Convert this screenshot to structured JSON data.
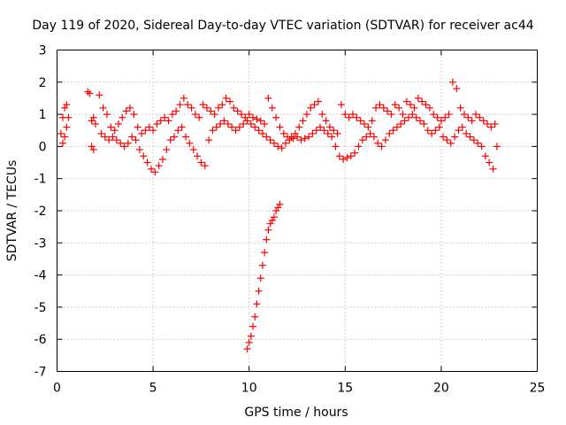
{
  "chart_data": {
    "type": "scatter",
    "title": "Day 119 of 2020, Sidereal Day-to-day VTEC variation (SDTVAR) for receiver ac44",
    "xlabel": "GPS time / hours",
    "ylabel": "SDTVAR / TECUs",
    "xlim": [
      0,
      25
    ],
    "ylim": [
      -7,
      3
    ],
    "xticks": [
      0,
      5,
      10,
      15,
      20,
      25
    ],
    "yticks": [
      -7,
      -6,
      -5,
      -4,
      -3,
      -2,
      -1,
      0,
      1,
      2,
      3
    ],
    "grid": true,
    "marker": "+",
    "color": "#ff0000",
    "series": [
      {
        "name": "main-band-upper",
        "x": [
          0.2,
          0.3,
          0.4,
          0.5,
          0.6,
          1.6,
          1.7,
          1.8,
          1.9,
          2.0,
          2.2,
          2.4,
          2.6,
          2.8,
          3.0,
          3.2,
          3.4,
          3.6,
          3.8,
          4.0,
          4.2,
          4.4,
          4.6,
          4.8,
          5.0,
          5.2,
          5.4,
          5.6,
          5.8,
          6.0,
          6.2,
          6.4,
          6.6,
          6.8,
          7.0,
          7.2,
          7.4,
          7.6,
          7.8,
          8.0,
          8.2,
          8.4,
          8.6,
          8.8,
          9.0,
          9.2,
          9.4,
          9.6,
          9.8,
          10.0,
          10.2,
          10.4,
          10.6,
          10.8,
          11.0,
          11.2,
          11.4,
          11.6,
          11.8,
          12.0,
          12.2,
          12.4,
          12.6,
          12.8,
          13.0,
          13.2,
          13.4,
          13.6,
          13.8,
          14.0,
          14.2,
          14.4,
          14.6,
          14.8,
          15.0,
          15.2,
          15.4,
          15.6,
          15.8,
          16.0,
          16.2,
          16.4,
          16.6,
          16.8,
          17.0,
          17.2,
          17.4,
          17.6,
          17.8,
          18.0,
          18.2,
          18.4,
          18.6,
          18.8,
          19.0,
          19.2,
          19.4,
          19.6,
          19.8,
          20.0,
          20.2,
          20.4,
          20.6,
          20.8,
          21.0,
          21.2,
          21.4,
          21.6,
          21.8,
          22.0,
          22.2,
          22.4,
          22.6,
          22.8
        ],
        "y": [
          0.4,
          0.9,
          1.2,
          1.3,
          0.9,
          1.7,
          1.65,
          0.8,
          0.9,
          0.7,
          1.6,
          1.2,
          1.0,
          0.6,
          0.5,
          0.7,
          0.9,
          1.1,
          1.2,
          1.0,
          0.6,
          0.4,
          0.5,
          0.6,
          0.5,
          0.7,
          0.8,
          0.9,
          0.8,
          1.0,
          1.1,
          1.3,
          1.5,
          1.3,
          1.2,
          1.0,
          0.9,
          1.3,
          1.2,
          1.1,
          1.0,
          1.2,
          1.3,
          1.5,
          1.4,
          1.2,
          1.1,
          1.0,
          0.9,
          1.0,
          0.9,
          0.85,
          0.8,
          0.7,
          1.5,
          1.2,
          0.9,
          0.6,
          0.4,
          0.3,
          0.3,
          0.4,
          0.6,
          0.8,
          1.0,
          1.2,
          1.3,
          1.4,
          1.0,
          0.8,
          0.6,
          0.5,
          0.4,
          1.3,
          1.0,
          0.9,
          1.0,
          0.9,
          0.8,
          0.7,
          0.6,
          0.8,
          1.2,
          1.3,
          1.2,
          1.1,
          1.0,
          1.3,
          1.2,
          1.0,
          1.4,
          1.3,
          1.2,
          1.5,
          1.4,
          1.3,
          1.2,
          1.0,
          0.9,
          0.8,
          0.9,
          1.0,
          2.0,
          1.8,
          1.2,
          1.0,
          0.9,
          0.8,
          1.0,
          0.9,
          0.8,
          0.7,
          0.6,
          0.7
        ]
      },
      {
        "name": "main-band-lower",
        "x": [
          0.3,
          0.4,
          0.5,
          1.8,
          1.9,
          2.3,
          2.5,
          2.7,
          2.9,
          3.1,
          3.3,
          3.5,
          3.7,
          3.9,
          4.1,
          4.3,
          4.5,
          4.7,
          4.9,
          5.1,
          5.3,
          5.5,
          5.7,
          5.9,
          6.1,
          6.3,
          6.5,
          6.7,
          6.9,
          7.1,
          7.3,
          7.5,
          7.7,
          7.9,
          8.1,
          8.3,
          8.5,
          8.7,
          8.9,
          9.1,
          9.3,
          9.5,
          9.7,
          9.9,
          10.1,
          10.3,
          10.5,
          10.7,
          10.9,
          11.1,
          11.3,
          11.5,
          11.7,
          11.9,
          12.1,
          12.3,
          12.5,
          12.7,
          12.9,
          13.1,
          13.3,
          13.5,
          13.7,
          13.9,
          14.1,
          14.3,
          14.5,
          14.7,
          14.9,
          15.1,
          15.3,
          15.5,
          15.7,
          15.9,
          16.1,
          16.3,
          16.5,
          16.7,
          16.9,
          17.1,
          17.3,
          17.5,
          17.7,
          17.9,
          18.1,
          18.3,
          18.5,
          18.7,
          18.9,
          19.1,
          19.3,
          19.5,
          19.7,
          19.9,
          20.1,
          20.3,
          20.5,
          20.7,
          20.9,
          21.1,
          21.3,
          21.5,
          21.7,
          21.9,
          22.1,
          22.3,
          22.5,
          22.7,
          22.9
        ],
        "y": [
          0.1,
          0.3,
          0.6,
          0.0,
          -0.1,
          0.4,
          0.3,
          0.2,
          0.3,
          0.2,
          0.1,
          0.0,
          0.1,
          0.3,
          0.2,
          -0.1,
          -0.3,
          -0.5,
          -0.7,
          -0.8,
          -0.6,
          -0.4,
          -0.1,
          0.2,
          0.3,
          0.5,
          0.6,
          0.3,
          0.1,
          -0.1,
          -0.3,
          -0.5,
          -0.6,
          0.2,
          0.5,
          0.6,
          0.7,
          0.8,
          0.7,
          0.6,
          0.5,
          0.6,
          0.7,
          0.8,
          0.7,
          0.6,
          0.5,
          0.4,
          0.3,
          0.2,
          0.1,
          0.0,
          -0.05,
          0.1,
          0.2,
          0.25,
          0.3,
          0.2,
          0.25,
          0.3,
          0.4,
          0.5,
          0.6,
          0.5,
          0.4,
          0.3,
          0.0,
          -0.3,
          -0.4,
          -0.35,
          -0.3,
          -0.2,
          0.0,
          0.2,
          0.3,
          0.4,
          0.3,
          0.1,
          0.0,
          0.2,
          0.4,
          0.5,
          0.6,
          0.7,
          0.8,
          0.9,
          1.0,
          0.9,
          0.8,
          0.7,
          0.5,
          0.4,
          0.5,
          0.6,
          0.3,
          0.2,
          0.1,
          0.3,
          0.5,
          0.6,
          0.4,
          0.3,
          0.2,
          0.1,
          0.0,
          -0.3,
          -0.5,
          -0.7,
          0.0
        ]
      },
      {
        "name": "dip-track",
        "x": [
          9.9,
          10.0,
          10.1,
          10.2,
          10.3,
          10.4,
          10.5,
          10.6,
          10.7,
          10.8,
          10.9,
          11.0,
          11.1,
          11.2,
          11.3,
          11.4,
          11.5,
          11.6
        ],
        "y": [
          -6.3,
          -6.1,
          -5.9,
          -5.6,
          -5.3,
          -4.9,
          -4.5,
          -4.1,
          -3.7,
          -3.3,
          -2.9,
          -2.6,
          -2.4,
          -2.3,
          -2.2,
          -2.0,
          -1.9,
          -1.8
        ]
      }
    ]
  }
}
